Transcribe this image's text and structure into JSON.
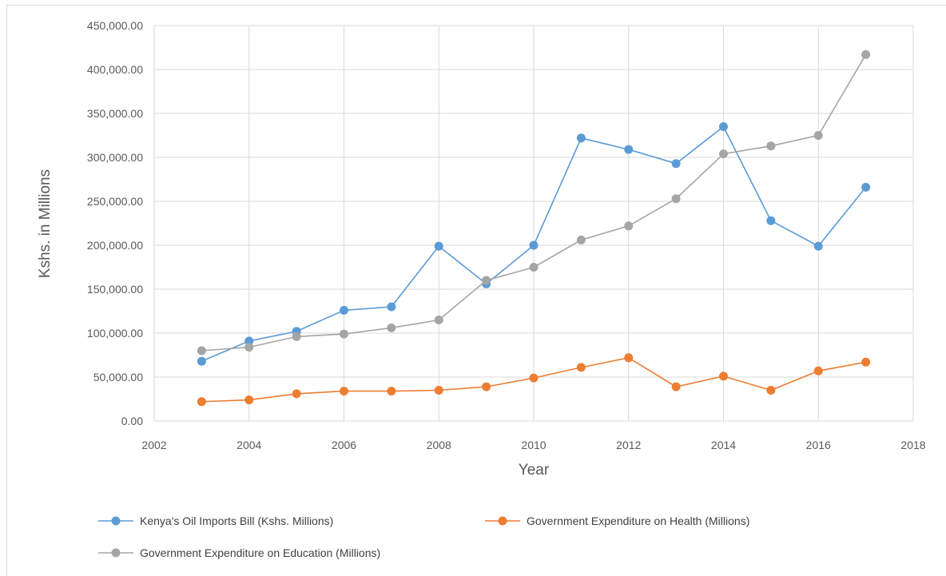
{
  "chart_data": {
    "type": "line",
    "title": "",
    "xlabel": "Year",
    "ylabel": "Kshs. in Millions",
    "xlim": [
      2002,
      2018
    ],
    "ylim": [
      0,
      450000
    ],
    "xticks": [
      "2002",
      "2004",
      "2006",
      "2008",
      "2010",
      "2012",
      "2014",
      "2016",
      "2018"
    ],
    "yticks": [
      "0.00",
      "50,000.00",
      "100,000.00",
      "150,000.00",
      "200,000.00",
      "250,000.00",
      "300,000.00",
      "350,000.00",
      "400,000.00",
      "450,000.00"
    ],
    "grid": true,
    "legend_position": "bottom",
    "x": [
      2003,
      2004,
      2005,
      2006,
      2007,
      2008,
      2009,
      2010,
      2011,
      2012,
      2013,
      2014,
      2015,
      2016,
      2017
    ],
    "series": [
      {
        "name": "Kenya's  Oil Imports Bill (Kshs. Millions)",
        "color": "#5b9bd5",
        "values": [
          68000,
          91000,
          102000,
          126000,
          130000,
          199000,
          156000,
          200000,
          322000,
          309000,
          293000,
          335000,
          228000,
          199000,
          266000
        ]
      },
      {
        "name": "Government Expenditure on Health (Millions)",
        "color": "#ed7d31",
        "values": [
          22000,
          24000,
          31000,
          34000,
          34000,
          35000,
          39000,
          49000,
          61000,
          72000,
          39000,
          51000,
          35000,
          57000,
          67000
        ]
      },
      {
        "name": "Government Expenditure on Education (Millions)",
        "color": "#a5a5a5",
        "values": [
          80000,
          84000,
          96000,
          99000,
          106000,
          115000,
          160000,
          175000,
          206000,
          222000,
          253000,
          304000,
          313000,
          325000,
          417000
        ]
      }
    ]
  }
}
